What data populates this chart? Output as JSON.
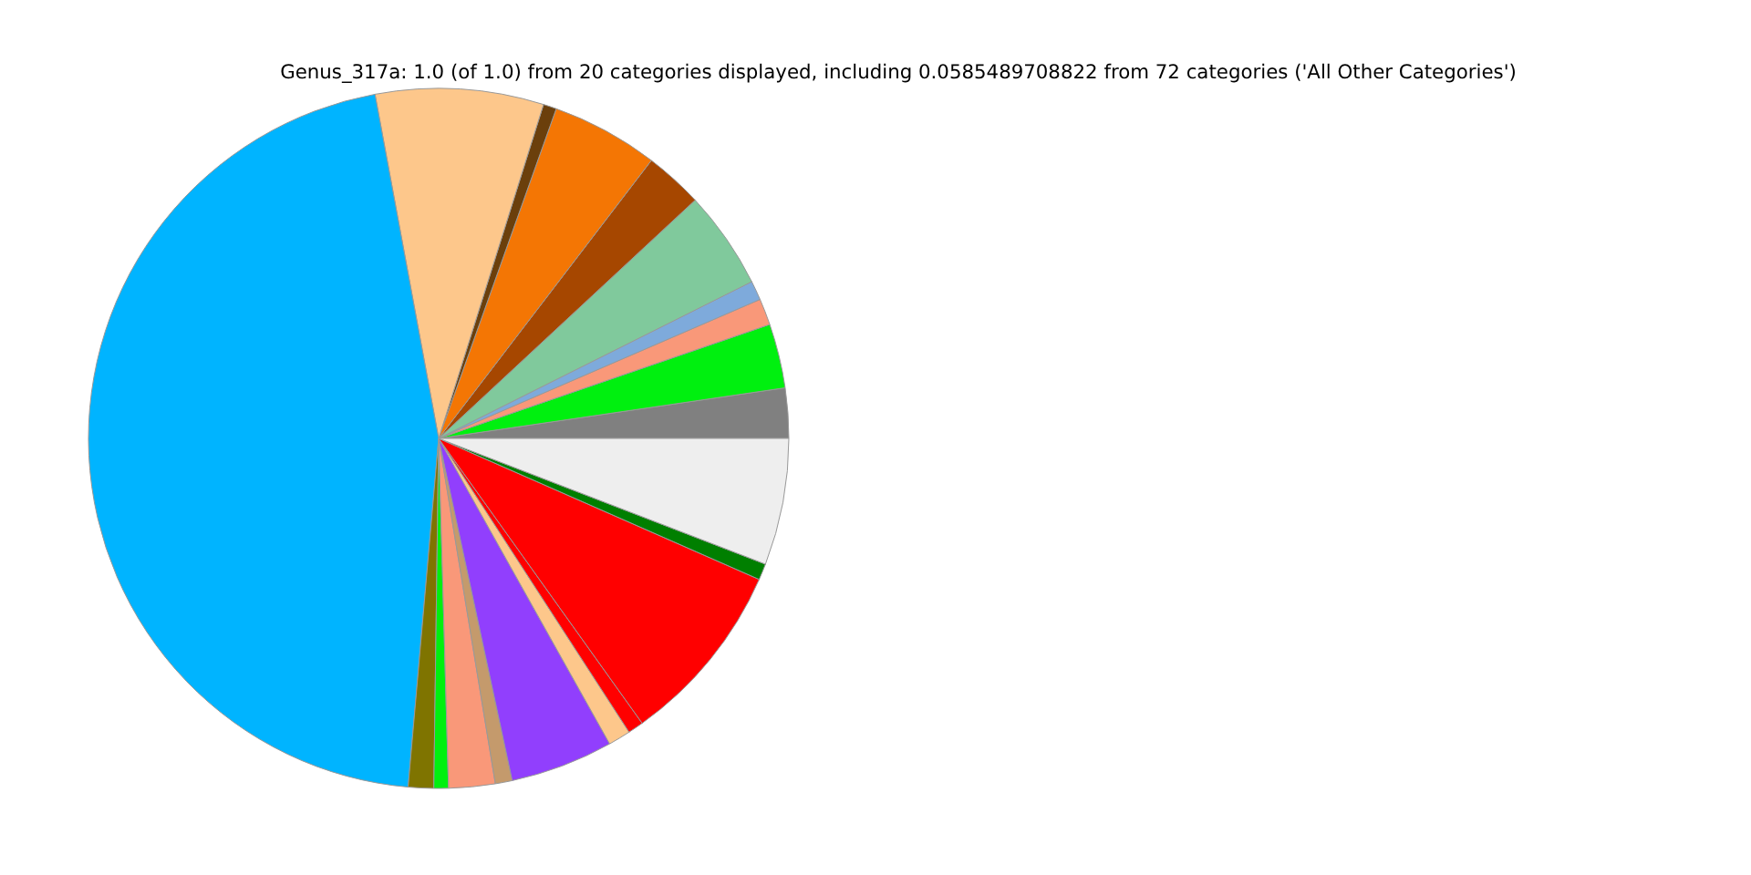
{
  "chart_data": {
    "type": "pie",
    "title": "Genus_317a: 1.0 (of 1.0) from 20 categories displayed, including 0.0585489708822 from 72 categories ('All Other Categories')",
    "categories": [
      null,
      null,
      null,
      null,
      null,
      null,
      null,
      null,
      null,
      null,
      null,
      null,
      null,
      null,
      null,
      null,
      null,
      null,
      null,
      null
    ],
    "values": [
      2.31,
      2.97,
      1.22,
      0.89,
      4.53,
      2.69,
      4.94,
      0.61,
      7.75,
      45.7,
      1.17,
      0.67,
      2.14,
      0.78,
      4.75,
      1.03,
      0.72,
      8.53,
      0.75,
      5.85
    ],
    "colors": [
      "#808080",
      "#00f00f",
      "#f99879",
      "#7eaadb",
      "#80c99c",
      "#a64700",
      "#f47604",
      "#6b3f0b",
      "#fdc78b",
      "#00b4ff",
      "#7f7400",
      "#00f00f",
      "#f99879",
      "#c49a6c",
      "#913ffd",
      "#fdc78b",
      "#ff0000",
      "#ff0000",
      "#007f00",
      "#eeeeee"
    ]
  }
}
